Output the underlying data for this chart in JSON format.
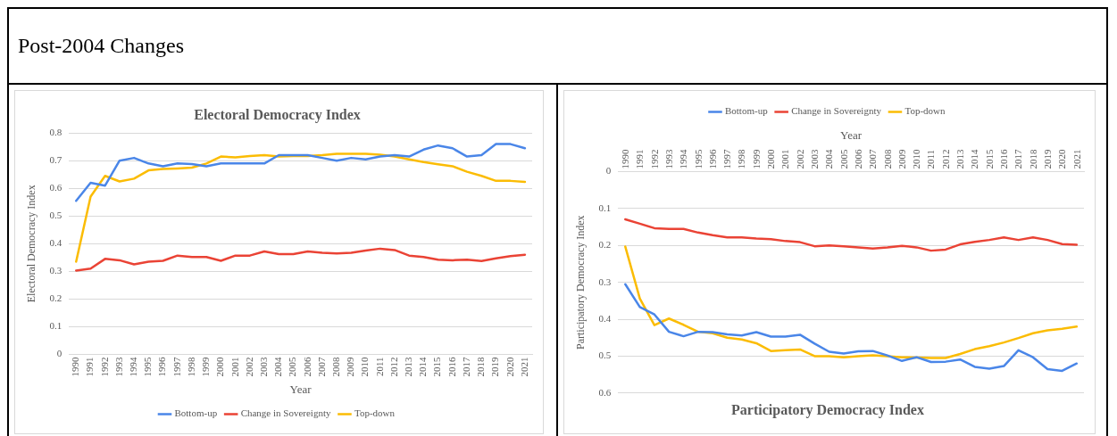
{
  "chart_data": [
    {
      "type": "other",
      "title": "Post-2004 Changes"
    },
    {
      "type": "line",
      "title": "Electoral Democracy Index",
      "xlabel": "Year",
      "ylabel": "Electoral Democracy Index",
      "categories": [
        "1990",
        "1991",
        "1992",
        "1993",
        "1994",
        "1995",
        "1996",
        "1997",
        "1998",
        "1999",
        "2000",
        "2001",
        "2002",
        "2003",
        "2004",
        "2005",
        "2006",
        "2007",
        "2008",
        "2009",
        "2010",
        "2011",
        "2012",
        "2013",
        "2014",
        "2015",
        "2016",
        "2017",
        "2018",
        "2019",
        "2020",
        "2021"
      ],
      "series": [
        {
          "name": "Bottom-up",
          "color": "#4a86e8",
          "values": [
            0.555,
            0.62,
            0.61,
            0.7,
            0.71,
            0.69,
            0.68,
            0.69,
            0.688,
            0.68,
            0.69,
            0.69,
            0.69,
            0.69,
            0.72,
            0.72,
            0.72,
            0.71,
            0.7,
            0.71,
            0.705,
            0.715,
            0.72,
            0.715,
            0.74,
            0.755,
            0.745,
            0.715,
            0.72,
            0.76,
            0.76,
            0.745
          ]
        },
        {
          "name": "Change in Sovereignty",
          "color": "#ea4335",
          "values": [
            0.303,
            0.31,
            0.345,
            0.34,
            0.325,
            0.335,
            0.338,
            0.357,
            0.352,
            0.352,
            0.338,
            0.357,
            0.357,
            0.372,
            0.362,
            0.362,
            0.372,
            0.367,
            0.365,
            0.367,
            0.375,
            0.382,
            0.377,
            0.357,
            0.352,
            0.342,
            0.34,
            0.342,
            0.337,
            0.347,
            0.355,
            0.36
          ]
        },
        {
          "name": "Top-down",
          "color": "#fbbc04",
          "values": [
            0.335,
            0.57,
            0.645,
            0.625,
            0.635,
            0.665,
            0.67,
            0.672,
            0.675,
            0.69,
            0.715,
            0.712,
            0.717,
            0.72,
            0.715,
            0.717,
            0.717,
            0.72,
            0.725,
            0.725,
            0.725,
            0.722,
            0.715,
            0.705,
            0.695,
            0.687,
            0.68,
            0.66,
            0.645,
            0.627,
            0.627,
            0.623
          ]
        }
      ],
      "ylim": [
        0,
        0.8
      ],
      "yticks": [
        0,
        0.1,
        0.2,
        0.3,
        0.4,
        0.5,
        0.6,
        0.7,
        0.8
      ],
      "grid": "y",
      "legend": "bottom",
      "marker": "none",
      "line_style": "solid"
    },
    {
      "type": "line",
      "title": "Participatory Democracy Index",
      "xlabel": "Year",
      "ylabel": "Participatory Democracy Index",
      "categories": [
        "1990",
        "1991",
        "1992",
        "1993",
        "1994",
        "1995",
        "1996",
        "1997",
        "1998",
        "1999",
        "2000",
        "2001",
        "2002",
        "2003",
        "2004",
        "2005",
        "2006",
        "2007",
        "2008",
        "2009",
        "2010",
        "2011",
        "2012",
        "2013",
        "2014",
        "2015",
        "2016",
        "2017",
        "2018",
        "2019",
        "2020",
        "2021"
      ],
      "series": [
        {
          "name": "Bottom-up",
          "color": "#4a86e8",
          "values": [
            0.305,
            0.367,
            0.387,
            0.434,
            0.446,
            0.434,
            0.435,
            0.441,
            0.444,
            0.435,
            0.447,
            0.447,
            0.442,
            0.466,
            0.488,
            0.493,
            0.487,
            0.486,
            0.498,
            0.513,
            0.503,
            0.516,
            0.515,
            0.509,
            0.529,
            0.534,
            0.527,
            0.484,
            0.503,
            0.535,
            0.54,
            0.52
          ]
        },
        {
          "name": "Change in Sovereignty",
          "color": "#ea4335",
          "values": [
            0.129,
            0.141,
            0.153,
            0.155,
            0.155,
            0.165,
            0.172,
            0.178,
            0.178,
            0.181,
            0.183,
            0.188,
            0.191,
            0.202,
            0.2,
            0.202,
            0.205,
            0.208,
            0.205,
            0.201,
            0.205,
            0.214,
            0.211,
            0.197,
            0.19,
            0.185,
            0.178,
            0.185,
            0.178,
            0.185,
            0.196,
            0.198
          ]
        },
        {
          "name": "Top-down",
          "color": "#fbbc04",
          "values": [
            0.203,
            0.344,
            0.416,
            0.398,
            0.415,
            0.434,
            0.438,
            0.45,
            0.455,
            0.465,
            0.486,
            0.484,
            0.482,
            0.5,
            0.5,
            0.503,
            0.5,
            0.498,
            0.5,
            0.503,
            0.504,
            0.505,
            0.505,
            0.494,
            0.481,
            0.473,
            0.463,
            0.451,
            0.438,
            0.43,
            0.426,
            0.42
          ]
        }
      ],
      "ylim": [
        0.6,
        0
      ],
      "yticks": [
        0,
        0.1,
        0.2,
        0.3,
        0.4,
        0.5,
        0.6
      ],
      "grid": "y",
      "legend": "top",
      "marker": "none",
      "line_style": "solid"
    }
  ]
}
